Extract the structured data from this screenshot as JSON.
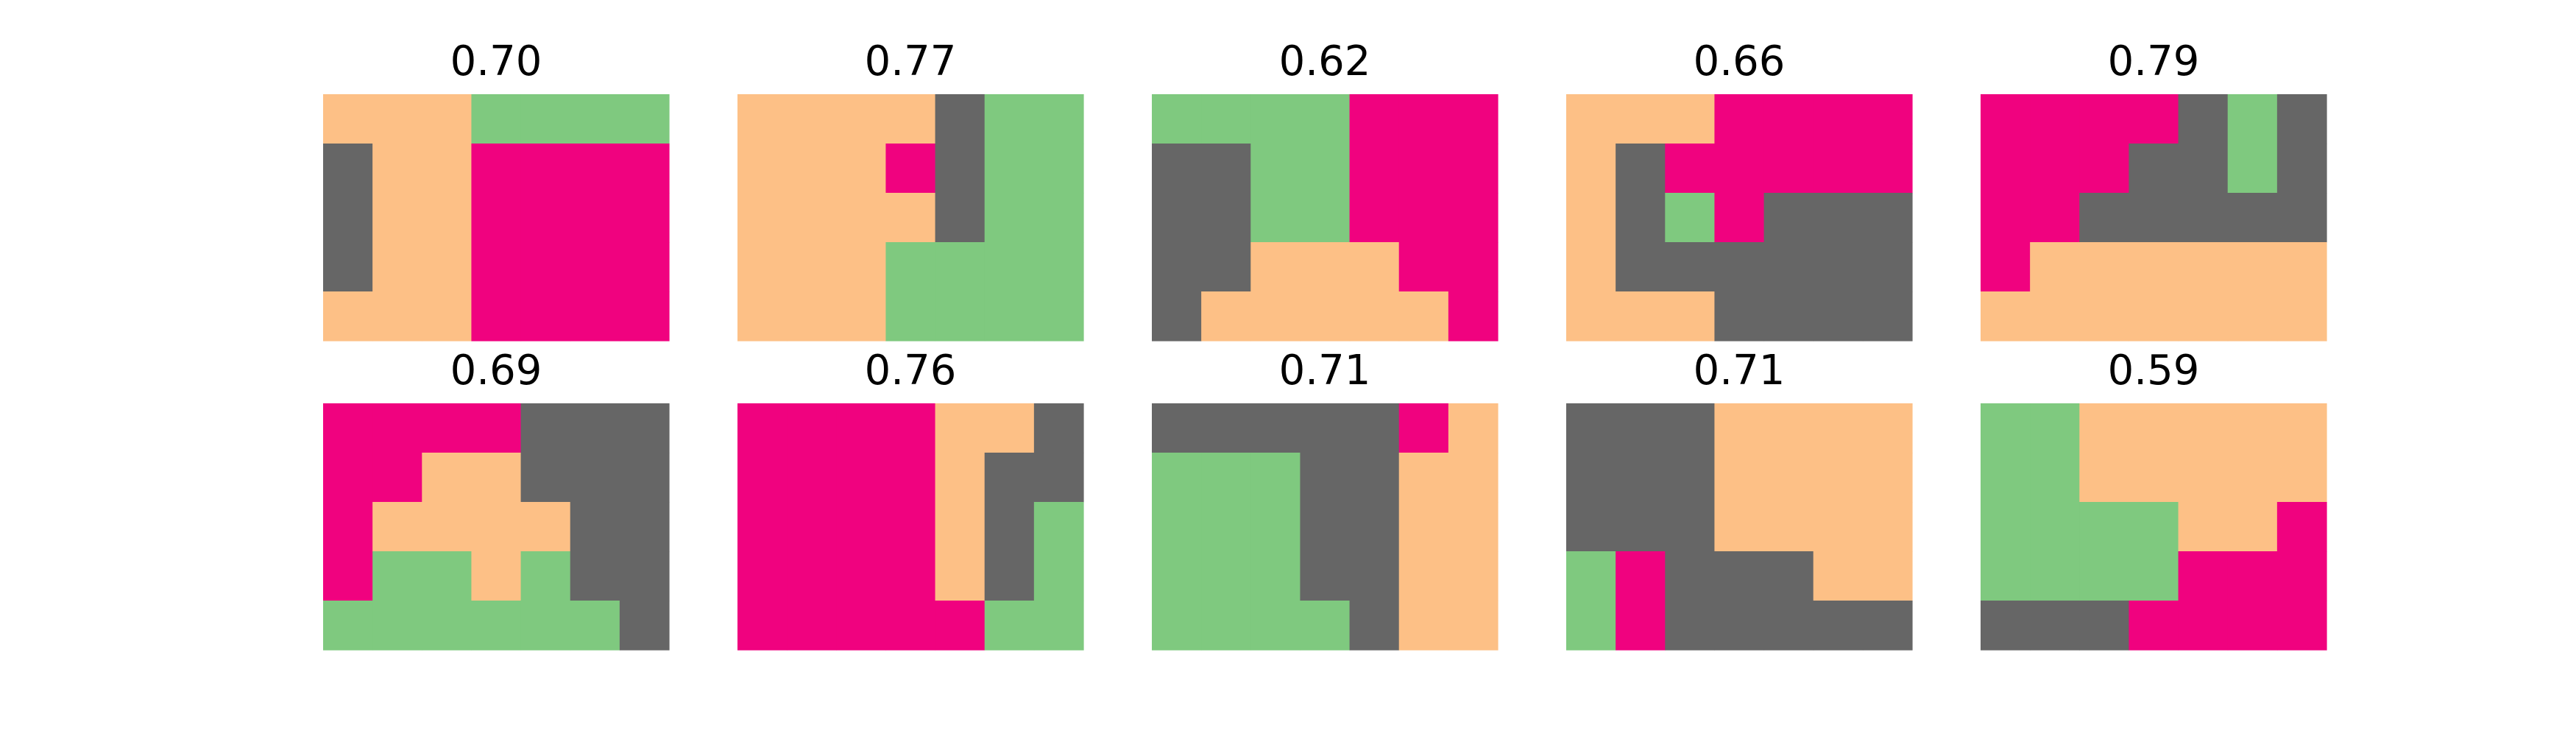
{
  "chart_data": {
    "type": "heatmap",
    "grid_rows": 5,
    "grid_cols": 7,
    "colors": {
      "0": "#fdc086",
      "1": "#7fc97f",
      "2": "#666666",
      "3": "#f0027f"
    },
    "panels": [
      {
        "title": "0.70",
        "cells": [
          [
            0,
            0,
            0,
            1,
            1,
            1,
            1
          ],
          [
            2,
            0,
            0,
            3,
            3,
            3,
            3
          ],
          [
            2,
            0,
            0,
            3,
            3,
            3,
            3
          ],
          [
            2,
            0,
            0,
            3,
            3,
            3,
            3
          ],
          [
            0,
            0,
            0,
            3,
            3,
            3,
            3
          ]
        ]
      },
      {
        "title": "0.77",
        "cells": [
          [
            0,
            0,
            0,
            0,
            2,
            1,
            1
          ],
          [
            0,
            0,
            0,
            3,
            2,
            1,
            1
          ],
          [
            0,
            0,
            0,
            0,
            2,
            1,
            1
          ],
          [
            0,
            0,
            0,
            1,
            1,
            1,
            1
          ],
          [
            0,
            0,
            0,
            1,
            1,
            1,
            1
          ]
        ]
      },
      {
        "title": "0.62",
        "cells": [
          [
            1,
            1,
            1,
            1,
            3,
            3,
            3
          ],
          [
            2,
            2,
            1,
            1,
            3,
            3,
            3
          ],
          [
            2,
            2,
            1,
            1,
            3,
            3,
            3
          ],
          [
            2,
            2,
            0,
            0,
            0,
            3,
            3
          ],
          [
            2,
            0,
            0,
            0,
            0,
            0,
            3
          ]
        ]
      },
      {
        "title": "0.66",
        "cells": [
          [
            0,
            0,
            0,
            3,
            3,
            3,
            3
          ],
          [
            0,
            2,
            3,
            3,
            3,
            3,
            3
          ],
          [
            0,
            2,
            1,
            3,
            2,
            2,
            2
          ],
          [
            0,
            2,
            2,
            2,
            2,
            2,
            2
          ],
          [
            0,
            0,
            0,
            2,
            2,
            2,
            2
          ]
        ]
      },
      {
        "title": "0.79",
        "cells": [
          [
            3,
            3,
            3,
            3,
            2,
            1,
            2
          ],
          [
            3,
            3,
            3,
            2,
            2,
            1,
            2
          ],
          [
            3,
            3,
            2,
            2,
            2,
            2,
            2
          ],
          [
            3,
            0,
            0,
            0,
            0,
            0,
            0
          ],
          [
            0,
            0,
            0,
            0,
            0,
            0,
            0
          ]
        ]
      },
      {
        "title": "0.69",
        "cells": [
          [
            3,
            3,
            3,
            3,
            2,
            2,
            2
          ],
          [
            3,
            3,
            0,
            0,
            2,
            2,
            2
          ],
          [
            3,
            0,
            0,
            0,
            0,
            2,
            2
          ],
          [
            3,
            1,
            1,
            0,
            1,
            2,
            2
          ],
          [
            1,
            1,
            1,
            1,
            1,
            1,
            2
          ]
        ]
      },
      {
        "title": "0.76",
        "cells": [
          [
            3,
            3,
            3,
            3,
            0,
            0,
            2
          ],
          [
            3,
            3,
            3,
            3,
            0,
            2,
            2
          ],
          [
            3,
            3,
            3,
            3,
            0,
            2,
            1
          ],
          [
            3,
            3,
            3,
            3,
            0,
            2,
            1
          ],
          [
            3,
            3,
            3,
            3,
            3,
            1,
            1
          ]
        ]
      },
      {
        "title": "0.71",
        "cells": [
          [
            2,
            2,
            2,
            2,
            2,
            3,
            0
          ],
          [
            1,
            1,
            1,
            2,
            2,
            0,
            0
          ],
          [
            1,
            1,
            1,
            2,
            2,
            0,
            0
          ],
          [
            1,
            1,
            1,
            2,
            2,
            0,
            0
          ],
          [
            1,
            1,
            1,
            1,
            2,
            0,
            0
          ]
        ]
      },
      {
        "title": "0.71",
        "cells": [
          [
            2,
            2,
            2,
            0,
            0,
            0,
            0
          ],
          [
            2,
            2,
            2,
            0,
            0,
            0,
            0
          ],
          [
            2,
            2,
            2,
            0,
            0,
            0,
            0
          ],
          [
            1,
            3,
            2,
            2,
            2,
            0,
            0
          ],
          [
            1,
            3,
            2,
            2,
            2,
            2,
            2
          ]
        ]
      },
      {
        "title": "0.59",
        "cells": [
          [
            1,
            1,
            0,
            0,
            0,
            0,
            0
          ],
          [
            1,
            1,
            0,
            0,
            0,
            0,
            0
          ],
          [
            1,
            1,
            1,
            1,
            0,
            0,
            3
          ],
          [
            1,
            1,
            1,
            1,
            3,
            3,
            3
          ],
          [
            2,
            2,
            2,
            3,
            3,
            3,
            3
          ]
        ]
      }
    ]
  }
}
